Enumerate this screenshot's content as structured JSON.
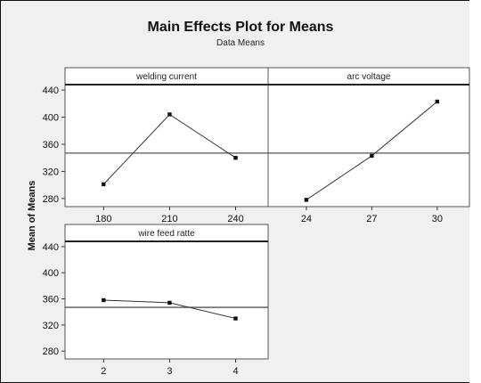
{
  "chart_data": {
    "type": "line",
    "title": "Main Effects Plot for Means",
    "subtitle": "Data Means",
    "ylabel": "Mean of Means",
    "ylim": [
      268,
      448
    ],
    "yticks": [
      280,
      320,
      360,
      400,
      440
    ],
    "reference_line": 347,
    "panels": [
      {
        "name": "welding current",
        "x": [
          "180",
          "210",
          "240"
        ],
        "values": [
          301,
          404,
          340
        ]
      },
      {
        "name": "arc voltage",
        "x": [
          "24",
          "27",
          "30"
        ],
        "values": [
          278,
          343,
          423
        ]
      },
      {
        "name": "wire feed ratte",
        "x": [
          "2",
          "3",
          "4"
        ],
        "values": [
          358,
          354,
          330
        ]
      }
    ],
    "colors": {
      "line": "#333333",
      "point": "#111111",
      "reference": "#555555",
      "plot_bg": "#ffffff",
      "figure_bg": "#eff0f2"
    }
  }
}
